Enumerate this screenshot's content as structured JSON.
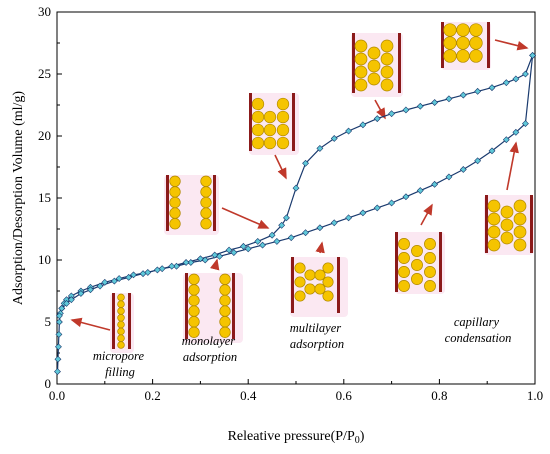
{
  "chart_data": {
    "type": "line",
    "xlabel": "Releative pressure(P/P",
    "xlabel_sub": "0",
    "xlabel_end": ")",
    "ylabel": "Adsorption/Desorption Volume (ml/g)",
    "xlim": [
      0,
      1
    ],
    "ylim": [
      0,
      30
    ],
    "xticks": [
      "0.0",
      "0.2",
      "0.4",
      "0.6",
      "0.8",
      "1.0"
    ],
    "yticks": [
      "0",
      "5",
      "10",
      "15",
      "20",
      "25",
      "30"
    ],
    "grid": false,
    "line_color": "#1a3a6e",
    "marker_color": "#5fc8d8",
    "sphere_color": "#f5c400",
    "wall_color": "#8b1a1a",
    "arrow_color": "#c0392b",
    "series": [
      {
        "role": "adsorption",
        "x": [
          0.001,
          0.002,
          0.003,
          0.004,
          0.005,
          0.007,
          0.01,
          0.015,
          0.02,
          0.03,
          0.05,
          0.07,
          0.1,
          0.13,
          0.16,
          0.19,
          0.22,
          0.25,
          0.28,
          0.31,
          0.34,
          0.37,
          0.4,
          0.43,
          0.46,
          0.49,
          0.52,
          0.55,
          0.58,
          0.61,
          0.64,
          0.67,
          0.7,
          0.73,
          0.76,
          0.79,
          0.82,
          0.85,
          0.88,
          0.91,
          0.94,
          0.96,
          0.98,
          0.995
        ],
        "y": [
          1.0,
          2.0,
          3.0,
          4.0,
          5.0,
          5.7,
          6.1,
          6.5,
          6.8,
          7.1,
          7.5,
          7.8,
          8.2,
          8.5,
          8.8,
          9.0,
          9.3,
          9.5,
          9.8,
          10.0,
          10.3,
          10.6,
          10.9,
          11.2,
          11.5,
          11.8,
          12.2,
          12.6,
          13.0,
          13.4,
          13.8,
          14.2,
          14.6,
          15.1,
          15.6,
          16.1,
          16.7,
          17.3,
          18.0,
          18.8,
          19.7,
          20.3,
          21.0,
          26.5
        ]
      },
      {
        "role": "desorption",
        "x": [
          0.995,
          0.98,
          0.96,
          0.94,
          0.91,
          0.88,
          0.85,
          0.82,
          0.79,
          0.76,
          0.73,
          0.7,
          0.67,
          0.64,
          0.61,
          0.58,
          0.55,
          0.52,
          0.5,
          0.48,
          0.47,
          0.45,
          0.42,
          0.39,
          0.36,
          0.33,
          0.3,
          0.27,
          0.24,
          0.21,
          0.18,
          0.15,
          0.12,
          0.09,
          0.07,
          0.05,
          0.03,
          0.02,
          0.01,
          0.005
        ],
        "y": [
          26.5,
          25.0,
          24.6,
          24.3,
          23.9,
          23.6,
          23.3,
          23.0,
          22.7,
          22.4,
          22.1,
          21.8,
          21.4,
          20.9,
          20.4,
          19.8,
          19.0,
          17.8,
          15.8,
          13.4,
          12.8,
          12.0,
          11.5,
          11.1,
          10.8,
          10.4,
          10.1,
          9.8,
          9.5,
          9.2,
          8.9,
          8.6,
          8.3,
          7.9,
          7.6,
          7.3,
          6.8,
          6.5,
          6.1,
          5.5
        ]
      }
    ],
    "annotations": {
      "micropore_filling": [
        "micropore",
        "filling"
      ],
      "monolayer_adsorption": [
        "monolayer",
        "adsorption"
      ],
      "multilayer_adsorption": [
        "multilayer",
        "adsorption"
      ],
      "capillary_condensation": [
        "capillary",
        "condensation"
      ]
    }
  }
}
